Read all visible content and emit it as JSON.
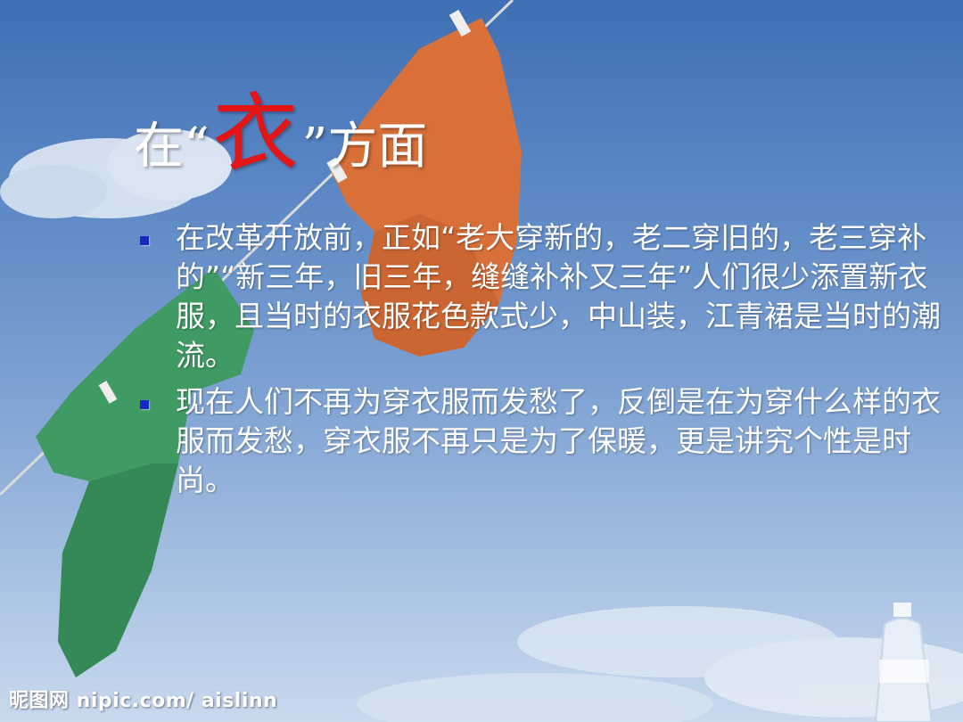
{
  "title": {
    "prefix": "在“",
    "accent": "衣",
    "suffix": "”方面",
    "accent_color": "#e31515"
  },
  "bullets": [
    "在改革开放前，正如“老大穿新的，老二穿旧的，老三穿补的”“新三年，旧三年，缝缝补补又三年”人们很少添置新衣服，且当时的衣服花色款式少，中山装，江青裙是当时的潮流。",
    "现在人们不再为穿衣服而发愁了，反倒是在为穿什么样的衣服而发愁，穿衣服不再只是为了保暖，更是讲究个性是时尚。"
  ],
  "watermark": "昵图网 nipic.com/ aislinn",
  "colors": {
    "bullet_marker": "#1a27c8",
    "orange_shirt": "#d9703a",
    "green_shirt": "#3f9a63",
    "text": "#ffffff"
  }
}
